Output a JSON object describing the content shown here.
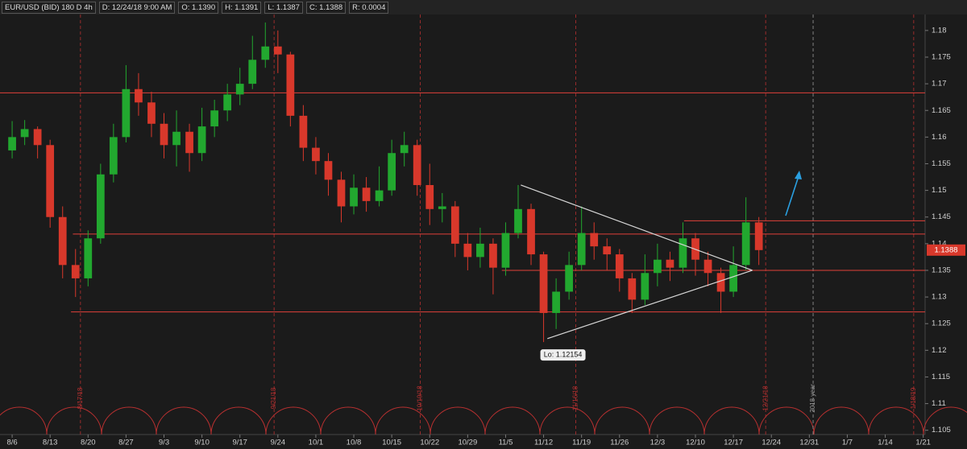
{
  "header": {
    "symbol": "EUR/USD (BID) 180 D 4h",
    "date": "D: 12/24/18 9:00 AM",
    "open": "O: 1.1390",
    "high": "H: 1.1391",
    "low": "L: 1.1387",
    "close": "C: 1.1388",
    "range": "R: 0.0004"
  },
  "chart_data": {
    "type": "candlestick",
    "x": [
      0,
      0.33,
      0.67,
      1,
      1.33,
      1.67,
      2,
      2.33,
      2.67,
      3,
      3.33,
      3.67,
      4,
      4.33,
      4.67,
      5,
      5.33,
      5.67,
      6,
      6.33,
      6.67,
      7,
      7.33,
      7.67,
      8,
      8.33,
      8.67,
      9,
      9.33,
      9.67,
      10,
      10.33,
      10.67,
      11,
      11.33,
      11.67,
      12,
      12.33,
      12.67,
      13,
      13.33,
      13.67,
      14,
      14.33,
      14.67,
      15,
      15.33,
      15.67,
      16,
      16.33,
      16.67,
      17,
      17.33,
      17.67,
      18,
      18.33,
      18.67,
      19,
      19.33,
      19.67
    ],
    "open": [
      1.1575,
      1.16,
      1.1615,
      1.1585,
      1.145,
      1.136,
      1.1335,
      1.141,
      1.153,
      1.16,
      1.169,
      1.1665,
      1.1625,
      1.1585,
      1.161,
      1.157,
      1.162,
      1.165,
      1.168,
      1.17,
      1.1745,
      1.177,
      1.1755,
      1.164,
      1.158,
      1.1555,
      1.152,
      1.147,
      1.1505,
      1.148,
      1.15,
      1.157,
      1.1585,
      1.151,
      1.1465,
      1.147,
      1.14,
      1.1375,
      1.14,
      1.1355,
      1.142,
      1.1465,
      1.138,
      1.127,
      1.131,
      1.136,
      1.142,
      1.1395,
      1.138,
      1.1335,
      1.1295,
      1.1345,
      1.137,
      1.1355,
      1.141,
      1.137,
      1.1345,
      1.131,
      1.136,
      1.144
    ],
    "high": [
      1.163,
      1.1632,
      1.162,
      1.1595,
      1.147,
      1.139,
      1.1425,
      1.155,
      1.1625,
      1.1735,
      1.172,
      1.1685,
      1.1645,
      1.165,
      1.1625,
      1.1655,
      1.167,
      1.17,
      1.173,
      1.179,
      1.1815,
      1.18,
      1.176,
      1.166,
      1.16,
      1.157,
      1.1535,
      1.153,
      1.1525,
      1.1545,
      1.1595,
      1.161,
      1.1595,
      1.155,
      1.1495,
      1.148,
      1.142,
      1.143,
      1.141,
      1.144,
      1.151,
      1.1475,
      1.1385,
      1.1335,
      1.1385,
      1.147,
      1.144,
      1.141,
      1.139,
      1.1345,
      1.138,
      1.14,
      1.1385,
      1.144,
      1.142,
      1.1385,
      1.1355,
      1.1395,
      1.1487,
      1.145
    ],
    "low": [
      1.156,
      1.1585,
      1.156,
      1.143,
      1.1335,
      1.13,
      1.132,
      1.14,
      1.1515,
      1.159,
      1.164,
      1.16,
      1.156,
      1.1545,
      1.1535,
      1.1555,
      1.16,
      1.163,
      1.166,
      1.169,
      1.173,
      1.172,
      1.162,
      1.1555,
      1.153,
      1.149,
      1.144,
      1.1455,
      1.146,
      1.147,
      1.149,
      1.1545,
      1.149,
      1.1435,
      1.144,
      1.1375,
      1.135,
      1.1355,
      1.1305,
      1.134,
      1.141,
      1.136,
      1.12154,
      1.124,
      1.1295,
      1.135,
      1.137,
      1.135,
      1.131,
      1.127,
      1.1285,
      1.132,
      1.133,
      1.1345,
      1.134,
      1.132,
      1.127,
      1.13,
      1.135,
      1.136
    ],
    "close": [
      1.16,
      1.1615,
      1.1585,
      1.145,
      1.136,
      1.1335,
      1.141,
      1.153,
      1.16,
      1.169,
      1.1665,
      1.1625,
      1.1585,
      1.161,
      1.157,
      1.162,
      1.165,
      1.168,
      1.17,
      1.1745,
      1.177,
      1.1755,
      1.164,
      1.158,
      1.1555,
      1.152,
      1.147,
      1.1505,
      1.148,
      1.15,
      1.157,
      1.1585,
      1.151,
      1.1465,
      1.147,
      1.14,
      1.1375,
      1.14,
      1.1355,
      1.142,
      1.1465,
      1.138,
      1.127,
      1.131,
      1.136,
      1.142,
      1.1395,
      1.138,
      1.1335,
      1.1295,
      1.1345,
      1.137,
      1.1355,
      1.141,
      1.137,
      1.1345,
      1.131,
      1.136,
      1.144,
      1.1388
    ],
    "up_color": "#22a82f",
    "down_color": "#d8382b",
    "xlim": [
      -0.32,
      24.05
    ],
    "xticks": [
      {
        "value": 0,
        "label": "8/6"
      },
      {
        "value": 1,
        "label": "8/13"
      },
      {
        "value": 2,
        "label": "8/20"
      },
      {
        "value": 3,
        "label": "8/27"
      },
      {
        "value": 4,
        "label": "9/3"
      },
      {
        "value": 5,
        "label": "9/10"
      },
      {
        "value": 6,
        "label": "9/17"
      },
      {
        "value": 7,
        "label": "9/24"
      },
      {
        "value": 8,
        "label": "10/1"
      },
      {
        "value": 9,
        "label": "10/8"
      },
      {
        "value": 10,
        "label": "10/15"
      },
      {
        "value": 11,
        "label": "10/22"
      },
      {
        "value": 12,
        "label": "10/29"
      },
      {
        "value": 13,
        "label": "11/5"
      },
      {
        "value": 14,
        "label": "11/12"
      },
      {
        "value": 15,
        "label": "11/19"
      },
      {
        "value": 16,
        "label": "11/26"
      },
      {
        "value": 17,
        "label": "12/3"
      },
      {
        "value": 18,
        "label": "12/10"
      },
      {
        "value": 19,
        "label": "12/17"
      },
      {
        "value": 20,
        "label": "12/24"
      },
      {
        "value": 21,
        "label": "12/31"
      },
      {
        "value": 22,
        "label": "1/7"
      },
      {
        "value": 23,
        "label": "1/14"
      },
      {
        "value": 24,
        "label": "1/21"
      }
    ],
    "ylim": [
      1.1042,
      1.183
    ],
    "yticks": [
      1.105,
      1.11,
      1.115,
      1.12,
      1.125,
      1.13,
      1.135,
      1.14,
      1.145,
      1.15,
      1.155,
      1.16,
      1.165,
      1.17,
      1.175,
      1.18
    ],
    "levels": [
      {
        "value": 1.1683,
        "from": -0.32
      },
      {
        "value": 1.1418,
        "from": 1.6
      },
      {
        "value": 1.1443,
        "from": 17.7
      },
      {
        "value": 1.135,
        "from": 12.9
      },
      {
        "value": 1.1272,
        "from": 1.55
      }
    ],
    "level_color": "#e0403a",
    "trendlines": [
      {
        "x": [
          13.4,
          19.5
        ],
        "y": [
          1.151,
          1.135
        ]
      },
      {
        "x": [
          14.1,
          19.5
        ],
        "y": [
          1.1222,
          1.135
        ]
      }
    ],
    "markers": [
      {
        "x": 1.8,
        "label": "8/17/18",
        "color": "#b83030"
      },
      {
        "x": 6.9,
        "label": "9/21/18",
        "color": "#b83030"
      },
      {
        "x": 10.75,
        "label": "10/19/18",
        "color": "#b83030"
      },
      {
        "x": 14.85,
        "label": "11/16/18",
        "color": "#b83030"
      },
      {
        "x": 19.85,
        "label": "12/21/18",
        "color": "#b83030"
      },
      {
        "x": 21.1,
        "label": "2018 year",
        "color": "#9a9a9a"
      },
      {
        "x": 23.75,
        "label": "1/18/19",
        "color": "#b83030"
      }
    ],
    "annotations": [
      {
        "text": "Lo: 1.12154",
        "x": 14,
        "y": 1.12154
      }
    ],
    "last_price_label": {
      "text": "1.1388",
      "value": 1.1388
    }
  }
}
